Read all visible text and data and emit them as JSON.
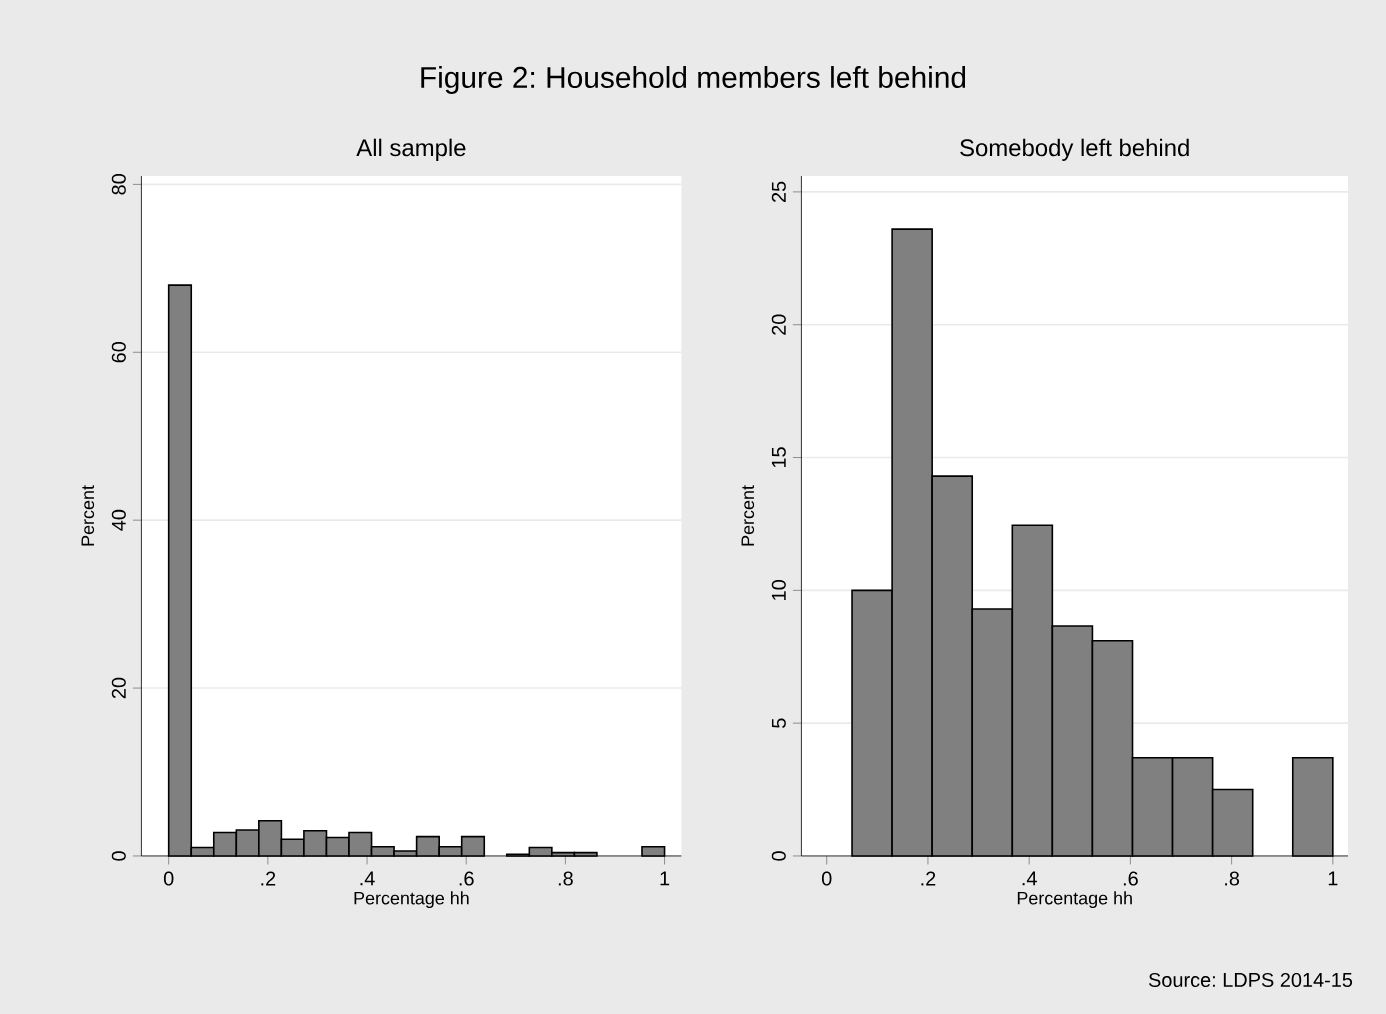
{
  "chart_data": [
    {
      "type": "histogram",
      "title": "All sample",
      "xlabel": "Percentage hh",
      "ylabel": "Percent",
      "color": "#808080",
      "grid": "y",
      "annotations": [
        "Figure 2: Household members left behind"
      ],
      "bins": [
        0,
        0.0455,
        0.0909,
        0.1364,
        0.1818,
        0.2273,
        0.2727,
        0.3182,
        0.3636,
        0.4091,
        0.4545,
        0.5,
        0.5455,
        0.5909,
        0.6364,
        0.6818,
        0.7273,
        0.7727,
        0.8182,
        0.8636,
        0.9091,
        0.9545,
        1
      ],
      "values": [
        68,
        1,
        2.8,
        3.1,
        4.2,
        2,
        3,
        2.2,
        2.8,
        1.1,
        0.6,
        2.3,
        1.1,
        2.3,
        null,
        0.2,
        1,
        0.4,
        0.4,
        null,
        null,
        1.1
      ],
      "xlim": [
        -0.055,
        1.034
      ],
      "ylim": [
        0,
        81
      ],
      "xticks": [
        0,
        {
          "value": 0.2,
          "label": ".2"
        },
        {
          "value": 0.4,
          "label": ".4"
        },
        {
          "value": 0.6,
          "label": ".6"
        },
        {
          "value": 0.8,
          "label": ".8"
        },
        1
      ],
      "yticks": [
        0,
        20,
        40,
        60,
        80
      ]
    },
    {
      "type": "histogram",
      "title": "Somebody left behind",
      "xlabel": "Percentage hh",
      "ylabel": "Percent",
      "color": "#808080",
      "grid": "y",
      "annotations": [
        "Source: LDPS 2014-15"
      ],
      "bins": [
        0.05,
        0.1292,
        0.2083,
        0.2875,
        0.3667,
        0.4458,
        0.525,
        0.6042,
        0.6833,
        0.7625,
        0.8417,
        0.9208,
        1
      ],
      "values": [
        10,
        23.6,
        14.3,
        9.3,
        12.45,
        8.66,
        8.1,
        3.7,
        3.7,
        2.5,
        null,
        3.7
      ],
      "xlim": [
        -0.05,
        1.03
      ],
      "ylim": [
        0,
        25.6
      ],
      "xticks": [
        0,
        {
          "value": 0.2,
          "label": ".2"
        },
        {
          "value": 0.4,
          "label": ".4"
        },
        {
          "value": 0.6,
          "label": ".6"
        },
        {
          "value": 0.8,
          "label": ".8"
        },
        1
      ],
      "yticks": [
        0,
        5,
        10,
        15,
        20,
        25
      ]
    }
  ]
}
